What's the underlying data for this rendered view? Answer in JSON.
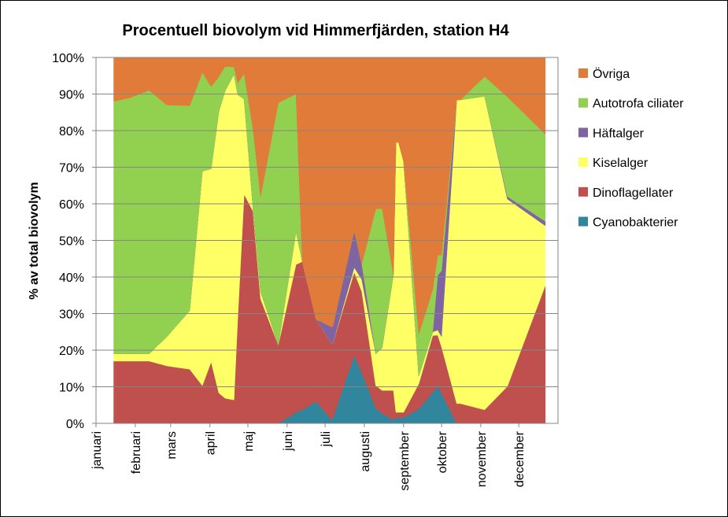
{
  "chart_data": {
    "type": "area",
    "stacked": "percent",
    "title": "Procentuell biovolym vid Himmerfjärden, station H4",
    "ylabel": "% av total biovolym",
    "xlabel": "",
    "xlim": [
      0,
      365
    ],
    "ylim": [
      0,
      100
    ],
    "yticks": [
      "0%",
      "10%",
      "20%",
      "30%",
      "40%",
      "50%",
      "60%",
      "70%",
      "80%",
      "90%",
      "100%"
    ],
    "months": [
      {
        "label": "januari",
        "day": 0
      },
      {
        "label": "februari",
        "day": 31
      },
      {
        "label": "mars",
        "day": 59
      },
      {
        "label": "april",
        "day": 90
      },
      {
        "label": "maj",
        "day": 120
      },
      {
        "label": "juni",
        "day": 151
      },
      {
        "label": "juli",
        "day": 181
      },
      {
        "label": "augusti",
        "day": 212
      },
      {
        "label": "september",
        "day": 243
      },
      {
        "label": "oktober",
        "day": 273
      },
      {
        "label": "november",
        "day": 304
      },
      {
        "label": "december",
        "day": 334
      }
    ],
    "legend_position": "right",
    "x": [
      14,
      27,
      42,
      56,
      74,
      84,
      91,
      97,
      102,
      109,
      112,
      117,
      124,
      130,
      144,
      158,
      163,
      174,
      186,
      187,
      204,
      210,
      221,
      226,
      235,
      237,
      239,
      243,
      255,
      266,
      270,
      273,
      285,
      288,
      307,
      325,
      355
    ],
    "series": [
      {
        "name": "Cyanobakterier",
        "color": "#31859c",
        "values": [
          0,
          0,
          0,
          0,
          0,
          0,
          0,
          0,
          0,
          0,
          0,
          0,
          0,
          0,
          0,
          3,
          3.7,
          6,
          1,
          1.4,
          18.6,
          13.8,
          4.2,
          2.7,
          1,
          1.6,
          1.6,
          1.6,
          4,
          8.5,
          10.3,
          8.2,
          0,
          0,
          0,
          0,
          0
        ]
      },
      {
        "name": "Dinoflagellater",
        "color": "#c0504d",
        "values": [
          17,
          17,
          17,
          15.7,
          14.8,
          10.3,
          16.8,
          8.3,
          7.2,
          6.4,
          28.8,
          62.6,
          58,
          34,
          21.4,
          40.4,
          40.5,
          22.4,
          20.9,
          20.4,
          22.7,
          22.2,
          6.1,
          6.3,
          8,
          1.4,
          1.4,
          1.4,
          6.8,
          15.5,
          13.8,
          12.7,
          5.4,
          5.4,
          3.7,
          10.1,
          37.7
        ]
      },
      {
        "name": "Kiselalger",
        "color": "#ffff66",
        "values": [
          2,
          2,
          2,
          8,
          16,
          58.6,
          52.8,
          76.9,
          88.2,
          89,
          61,
          26,
          1,
          2,
          0,
          9,
          0,
          0,
          0,
          0,
          1.3,
          3.3,
          8.7,
          11.6,
          31.6,
          73.8,
          73.8,
          68.6,
          2.1,
          1,
          1.4,
          2.8,
          83,
          83,
          85.7,
          51.2,
          16.3
        ]
      },
      {
        "name": "Häftalger",
        "color": "#8064a2",
        "values": [
          0,
          0,
          0,
          0,
          0,
          0,
          0,
          0,
          0,
          0,
          0,
          0,
          0,
          0,
          0,
          0,
          0,
          0,
          4.5,
          4.7,
          10.1,
          4.3,
          0,
          0,
          0,
          0,
          0,
          0,
          0,
          0,
          15,
          18,
          0,
          0,
          0,
          0.7,
          1.2
        ]
      },
      {
        "name": "Autotrofa ciliater",
        "color": "#92d050",
        "values": [
          69,
          70,
          72,
          63.3,
          56,
          27,
          22.4,
          9.5,
          7,
          2,
          3.2,
          7,
          21.5,
          26,
          66.2,
          37.6,
          0,
          0,
          0,
          0,
          0,
          0,
          39.6,
          38.1,
          0,
          0,
          0,
          0,
          11.5,
          11.5,
          5.5,
          4.3,
          0,
          0,
          5.4,
          27.2,
          23.8
        ]
      },
      {
        "name": "Övriga",
        "color": "#e07b39",
        "values": [
          12,
          11,
          9,
          13,
          13.2,
          4.1,
          8,
          5.3,
          2.6,
          2.6,
          7,
          4.4,
          19.5,
          38,
          12.4,
          10,
          55.8,
          71.6,
          73.6,
          73.5,
          47.3,
          56.4,
          41.4,
          41.3,
          59.4,
          23.2,
          23.2,
          28.4,
          75.6,
          63.5,
          54,
          54,
          11.6,
          11.6,
          5.2,
          10.8,
          21
        ]
      }
    ],
    "legend_order": [
      "Övriga",
      "Autotrofa ciliater",
      "Häftalger",
      "Kiselalger",
      "Dinoflagellater",
      "Cyanobakterier"
    ]
  }
}
